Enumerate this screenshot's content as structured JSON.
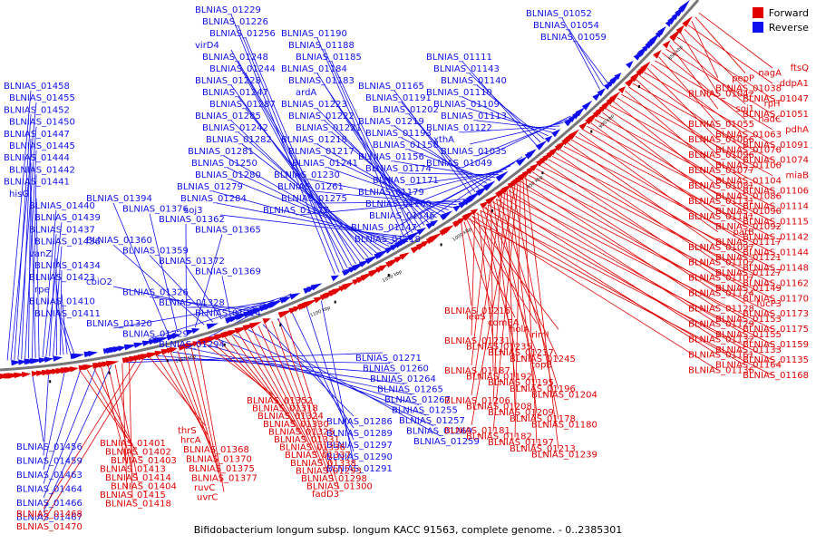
{
  "legend": {
    "forward": "Forward",
    "reverse": "Reverse"
  },
  "colors": {
    "forward": "#e00000",
    "reverse": "#1010ee",
    "backbone": "#777777"
  },
  "caption": "Bifidobacterium longum subsp. longum KACC 91563, complete genome. - 0..2385301",
  "ticks": [
    "850 kbp",
    "900 kbp",
    "950 kbp",
    "1000 kbp",
    "1050 kbp",
    "1100 kbp",
    "1150 kbp"
  ],
  "labels_reverse_left": [
    "BLNIAS_01458",
    "BLNIAS_01455",
    "BLNIAS_01452",
    "BLNIAS_01450",
    "BLNIAS_01447",
    "BLNIAS_01445",
    "BLNIAS_01444",
    "BLNIAS_01442",
    "BLNIAS_01441",
    "hisG",
    "BLNIAS_01440",
    "BLNIAS_01439",
    "BLNIAS_01437",
    "BLNIAS_01436",
    "vanZ",
    "BLNIAS_01434",
    "BLNIAS_01423",
    "rpe",
    "BLNIAS_01410",
    "BLNIAS_01411"
  ],
  "labels_reverse_mid": [
    "BLNIAS_01394",
    "BLNIAS_01376",
    "BLNIAS_01362",
    "BLNIAS_01365",
    "BLNIAS_01360",
    "BLNIAS_01359",
    "BLNIAS_01372",
    "BLNIAS_01369",
    "cbiO2",
    "BLNIAS_01326",
    "BLNIAS_01328",
    "BLNIAS_01314",
    "BLNIAS_01320",
    "BLNIAS_01329",
    "BLNIAS_01294"
  ],
  "labels_reverse_top": [
    "BLNIAS_01229",
    "BLNIAS_01226",
    "BLNIAS_01256",
    "virD4",
    "BLNIAS_01248",
    "BLNIAS_01244",
    "BLNIAS_01228",
    "BLNIAS_01247",
    "BLNIAS_01287",
    "BLNIAS_01285",
    "BLNIAS_01242",
    "BLNIAS_01282",
    "BLNIAS_01281",
    "BLNIAS_01250",
    "BLNIAS_01280",
    "BLNIAS_01279",
    "BLNIAS_01284",
    "soj3",
    "BLNIAS_01190",
    "BLNIAS_01188",
    "BLNIAS_01185",
    "BLNIAS_01184",
    "BLNIAS_01183",
    "ardA",
    "BLNIAS_01223",
    "BLNIAS_01222",
    "BLNIAS_01221",
    "BLNIAS_01218",
    "BLNIAS_01217",
    "BLNIAS_01241",
    "BLNIAS_01230",
    "BLNIAS_01261",
    "BLNIAS_01275",
    "BLNIAS_01177",
    "BLNIAS_01165",
    "BLNIAS_01191",
    "BLNIAS_01202",
    "BLNIAS_01219",
    "BLNIAS_01193",
    "BLNIAS_01158",
    "BLNIAS_01156",
    "BLNIAS_01174",
    "BLNIAS_01171",
    "BLNIAS_01179",
    "BLNIAS_01160",
    "BLNIAS_01146",
    "BLNIAS_01147",
    "BLNIAS_01118",
    "BLNIAS_01111",
    "BLNIAS_01143",
    "BLNIAS_01140",
    "BLNIAS_01110",
    "BLNIAS_01109",
    "BLNIAS_01113",
    "BLNIAS_01122",
    "xthA",
    "BLNIAS_01035",
    "BLNIAS_01049",
    "BLNIAS_01052",
    "BLNIAS_01054",
    "BLNIAS_01059"
  ],
  "labels_reverse_bottom": [
    "BLNIAS_01456",
    "BLNIAS_01459",
    "BLNIAS_01463",
    "BLNIAS_01464",
    "BLNIAS_01466",
    "BLNIAS_01467",
    "BLNIAS_01271",
    "BLNIAS_01260",
    "BLNIAS_01264",
    "BLNIAS_01265",
    "BLNIAS_01267",
    "BLNIAS_01255",
    "BLNIAS_01257",
    "BLNIAS_01269",
    "BLNIAS_01259",
    "BLNIAS_01286",
    "BLNIAS_01289",
    "BLNIAS_01297",
    "BLNIAS_01290",
    "BLNIAS_01291"
  ],
  "labels_forward_right": [
    "ftsQ",
    "nagA",
    "pepP",
    "ddpA1",
    "BLNIAS_01038",
    "BLNIAS_01042",
    "BLNIAS_01047",
    "rplT",
    "soj1",
    "BLNIAS_01051",
    "nadC",
    "BLNIAS_01055",
    "pdhA",
    "BLNIAS_01063",
    "BLNIAS_01066",
    "BLNIAS_01091",
    "BLNIAS_01070",
    "BLNIAS_01096",
    "BLNIAS_01074",
    "BLNIAS_01100",
    "BLNIAS_01077",
    "miaB",
    "BLNIAS_01104",
    "BLNIAS_01081",
    "BLNIAS_01106",
    "BLNIAS_01086",
    "BLNIAS_01131",
    "BLNIAS_01114",
    "BLNIAS_01090",
    "BLNIAS_01141",
    "BLNIAS_01115",
    "BLNIAS_01092",
    "parB",
    "BLNIAS_01142",
    "BLNIAS_01117",
    "BLNIAS_01097",
    "BLNIAS_01144",
    "BLNIAS_01121",
    "BLNIAS_01102",
    "BLNIAS_01148",
    "BLNIAS_01127",
    "BLNIAS_01107",
    "BLNIAS_01162",
    "BLNIAS_01149",
    "BLNIAS_01124",
    "BLNIAS_01170",
    "fucP3",
    "BLNIAS_01128",
    "BLNIAS_01173",
    "BLNIAS_01153",
    "BLNIAS_01129",
    "BLNIAS_01175",
    "BLNIAS_01155",
    "BLNIAS_01132",
    "BLNIAS_01159",
    "BLNIAS_01133",
    "BLNIAS_01161",
    "BLNIAS_01135",
    "BLNIAS_01164",
    "BLNIAS_01136",
    "BLNIAS_01168"
  ],
  "labels_forward_mid": [
    "BLNIAS_01216",
    "leuS",
    "comEA",
    "holA",
    "rimI",
    "BLNIAS_01231",
    "BLNIAS_01235",
    "BLNIAS_01237",
    "BLNIAS_01245",
    "topB",
    "BLNIAS_01187",
    "BLNIAS_01192",
    "BLNIAS_01195",
    "BLNIAS_01196",
    "BLNIAS_01204",
    "BLNIAS_01206",
    "BLNIAS_01208",
    "BLNIAS_01209",
    "BLNIAS_01178",
    "BLNIAS_01180",
    "BLNIAS_01181",
    "BLNIAS_01182",
    "BLNIAS_01197",
    "BLNIAS_01213",
    "BLNIAS_01239"
  ],
  "labels_forward_bottom": [
    "BLNIAS_01401",
    "BLNIAS_01402",
    "BLNIAS_01403",
    "BLNIAS_01413",
    "BLNIAS_01414",
    "BLNIAS_01404",
    "BLNIAS_01415",
    "BLNIAS_01418",
    "BLNIAS_01468",
    "BLNIAS_01470",
    "thrS",
    "hrcA",
    "BLNIAS_01368",
    "BLNIAS_01370",
    "BLNIAS_01375",
    "BLNIAS_01377",
    "ruvC",
    "uvrC",
    "BLNIAS_01352",
    "BLNIAS_01318",
    "BLNIAS_01324",
    "BLNIAS_01330",
    "BLNIAS_01325",
    "BLNIAS_01331",
    "BLNIAS_01336",
    "BLNIAS_01337",
    "BLNIAS_01338",
    "BLNIAS_01293",
    "BLNIAS_01298",
    "BLNIAS_01300",
    "fadD3"
  ]
}
